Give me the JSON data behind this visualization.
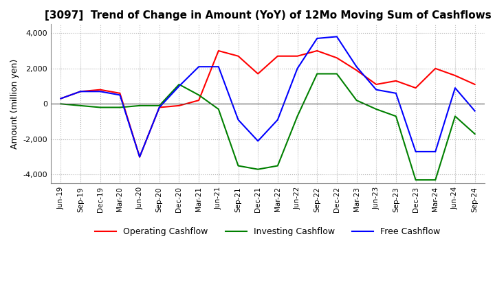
{
  "title": "[3097]  Trend of Change in Amount (YoY) of 12Mo Moving Sum of Cashflows",
  "ylabel": "Amount (million yen)",
  "ylim": [
    -4500,
    4500
  ],
  "yticks": [
    -4000,
    -2000,
    0,
    2000,
    4000
  ],
  "background_color": "#ffffff",
  "grid_color": "#b0b0b0",
  "x_labels": [
    "Jun-19",
    "Sep-19",
    "Dec-19",
    "Mar-20",
    "Jun-20",
    "Sep-20",
    "Dec-20",
    "Mar-21",
    "Jun-21",
    "Sep-21",
    "Dec-21",
    "Mar-22",
    "Jun-22",
    "Sep-22",
    "Dec-22",
    "Mar-23",
    "Jun-23",
    "Sep-23",
    "Dec-23",
    "Mar-24",
    "Jun-24",
    "Sep-24"
  ],
  "operating_cashflow": [
    300,
    700,
    800,
    600,
    -3000,
    -200,
    -100,
    200,
    3000,
    2700,
    1700,
    2700,
    2700,
    3000,
    2600,
    1900,
    1100,
    1300,
    900,
    2000,
    1600,
    1100
  ],
  "investing_cashflow": [
    0,
    -100,
    -200,
    -200,
    -100,
    -100,
    1100,
    500,
    -300,
    -3500,
    -3700,
    -3500,
    -700,
    1700,
    1700,
    200,
    -300,
    -700,
    -4300,
    -4300,
    -700,
    -1700
  ],
  "free_cashflow": [
    300,
    700,
    700,
    500,
    -3000,
    -200,
    1000,
    2100,
    2100,
    -900,
    -2100,
    -900,
    2000,
    3700,
    3800,
    2100,
    800,
    600,
    -2700,
    -2700,
    900,
    -400
  ],
  "operating_color": "#ff0000",
  "investing_color": "#008000",
  "free_color": "#0000ff",
  "legend_labels": [
    "Operating Cashflow",
    "Investing Cashflow",
    "Free Cashflow"
  ]
}
